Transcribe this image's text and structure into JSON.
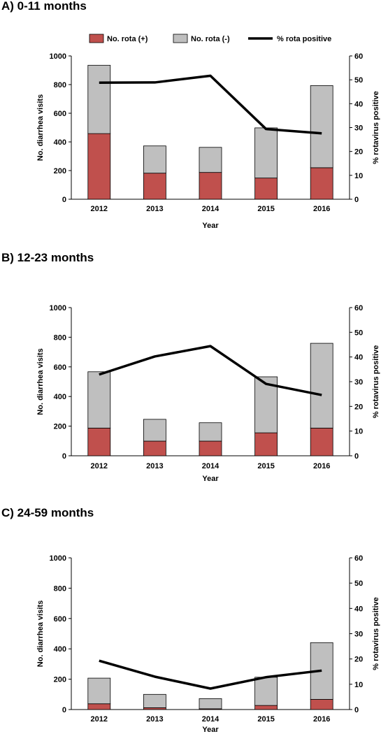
{
  "legend": {
    "pos_label": "No. rota (+)",
    "neg_label": "No. rota (-)",
    "pct_label": "% rota positive"
  },
  "colors": {
    "positive": "#c0504d",
    "negative": "#bfbfbf",
    "line": "#000000"
  },
  "chart_data": [
    {
      "type": "bar",
      "title": "A) 0-11 months",
      "categories": [
        "2012",
        "2013",
        "2014",
        "2015",
        "2016"
      ],
      "xlabel": "Year",
      "ylabel": "No. diarrhea visits",
      "y2label": "% rotavirus positive",
      "ylim": [
        0,
        1000
      ],
      "y2lim": [
        0,
        60
      ],
      "yticks": [
        "0",
        "200",
        "400",
        "600",
        "800",
        "1000"
      ],
      "y2ticks": [
        "0",
        "10",
        "20",
        "30",
        "40",
        "50",
        "60"
      ],
      "stacked": true,
      "legend_position": "top",
      "series": [
        {
          "name": "No. rota (+)",
          "kind": "bar",
          "values": [
            458,
            182,
            187,
            148,
            220
          ]
        },
        {
          "name": "No. rota (-)",
          "kind": "bar",
          "values": [
            477,
            190,
            175,
            350,
            573
          ]
        },
        {
          "name": "% rota positive",
          "kind": "line",
          "axis": "right",
          "values": [
            48.8,
            48.9,
            51.7,
            29.4,
            27.6
          ]
        }
      ]
    },
    {
      "type": "bar",
      "title": "B) 12-23 months",
      "categories": [
        "2012",
        "2013",
        "2014",
        "2015",
        "2016"
      ],
      "xlabel": "Year",
      "ylabel": "No. diarrhea visits",
      "y2label": "% rotavirus positive",
      "ylim": [
        0,
        1000
      ],
      "y2lim": [
        0,
        60
      ],
      "yticks": [
        "0",
        "200",
        "400",
        "600",
        "800",
        "1000"
      ],
      "y2ticks": [
        "0",
        "10",
        "20",
        "30",
        "40",
        "50",
        "60"
      ],
      "stacked": true,
      "series": [
        {
          "name": "No. rota (+)",
          "kind": "bar",
          "values": [
            187,
            99,
            99,
            155,
            187
          ]
        },
        {
          "name": "No. rota (-)",
          "kind": "bar",
          "values": [
            380,
            147,
            124,
            378,
            572
          ]
        },
        {
          "name": "% rota positive",
          "kind": "line",
          "axis": "right",
          "values": [
            32.9,
            40.2,
            44.4,
            29.1,
            24.6
          ]
        }
      ]
    },
    {
      "type": "bar",
      "title": "C) 24-59 months",
      "categories": [
        "2012",
        "2013",
        "2014",
        "2015",
        "2016"
      ],
      "xlabel": "Year",
      "ylabel": "No. diarrhea visits",
      "y2label": "% rotavirus positive",
      "ylim": [
        0,
        1000
      ],
      "y2lim": [
        0,
        60
      ],
      "yticks": [
        "0",
        "200",
        "400",
        "600",
        "800",
        "1000"
      ],
      "y2ticks": [
        "0",
        "10",
        "20",
        "30",
        "40",
        "50",
        "60"
      ],
      "stacked": true,
      "series": [
        {
          "name": "No. rota (+)",
          "kind": "bar",
          "values": [
            38,
            12,
            5,
            27,
            67
          ]
        },
        {
          "name": "No. rota (-)",
          "kind": "bar",
          "values": [
            169,
            88,
            67,
            186,
            374
          ]
        },
        {
          "name": "% rota positive",
          "kind": "line",
          "axis": "right",
          "values": [
            19.3,
            13.0,
            8.3,
            12.8,
            15.4
          ]
        }
      ]
    }
  ]
}
